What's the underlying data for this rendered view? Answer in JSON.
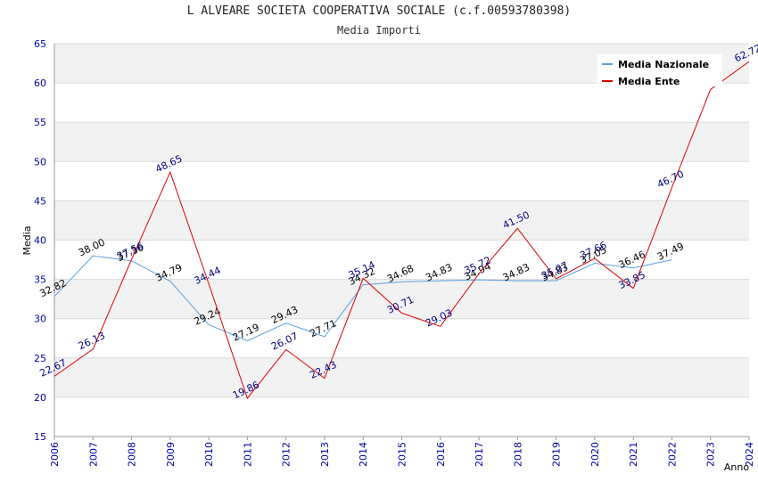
{
  "chart_data": {
    "type": "line",
    "title": "L ALVEARE SOCIETA COOPERATIVA SOCIALE (c.f.00593780398)",
    "subtitle": "Media Importi",
    "xlabel": "Anno",
    "ylabel": "Media",
    "ylim": [
      15,
      65
    ],
    "yticks": [
      15,
      20,
      25,
      30,
      35,
      40,
      45,
      50,
      55,
      60,
      65
    ],
    "categories": [
      "2006",
      "2007",
      "2008",
      "2009",
      "2010",
      "2011",
      "2012",
      "2013",
      "2014",
      "2015",
      "2016",
      "2017",
      "2018",
      "2019",
      "2020",
      "2021",
      "2022",
      "2023",
      "2024"
    ],
    "grid": true,
    "legend_position": "top-right",
    "series": [
      {
        "name": "Media Nazionale",
        "color": "#5aa0e0",
        "label_color": "#000000",
        "values": [
          32.82,
          38.0,
          37.36,
          34.79,
          29.24,
          27.19,
          29.43,
          27.71,
          34.32,
          34.68,
          34.83,
          34.94,
          34.83,
          34.83,
          37.05,
          36.46,
          37.49,
          null,
          null
        ],
        "labels": [
          "32.82",
          "38.00",
          "37.36",
          "34.79",
          "29.24",
          "27.19",
          "29.43",
          "27.71",
          "34.32",
          "34.68",
          "34.83",
          "34.94",
          "34.83",
          "34.83",
          "37.05",
          "36.46",
          "37.49",
          "",
          ""
        ]
      },
      {
        "name": "Media Ente",
        "color": "#dd0000",
        "label_color": "#000080",
        "values": [
          22.67,
          26.13,
          37.56,
          48.65,
          34.44,
          19.86,
          26.07,
          22.43,
          35.14,
          30.71,
          29.03,
          35.72,
          41.5,
          35.07,
          37.66,
          33.85,
          46.7,
          59.16,
          62.72
        ],
        "labels": [
          "22.67",
          "26.13",
          "37.56",
          "48.65",
          "34.44",
          "19.86",
          "26.07",
          "22.43",
          "35.14",
          "30.71",
          "29.03",
          "35.72",
          "41.50",
          "35.07",
          "37.66",
          "33.85",
          "46.70",
          "",
          "62.72"
        ]
      }
    ]
  }
}
